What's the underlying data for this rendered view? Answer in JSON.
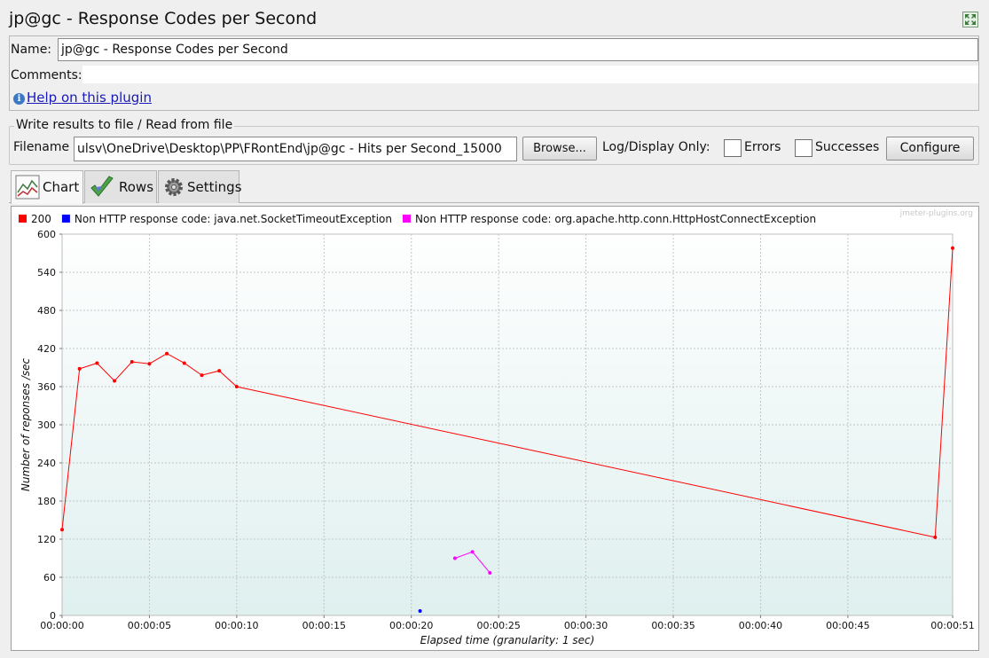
{
  "window": {
    "title": "jp@gc - Response Codes per Second"
  },
  "name_panel": {
    "name_label": "Name:",
    "name_value": "jp@gc - Response Codes per Second",
    "comments_label": "Comments:",
    "comments_value": "",
    "help_link": "Help on this plugin"
  },
  "file_panel": {
    "group_title": "Write results to file / Read from file",
    "filename_label": "Filename",
    "filename_value": "ulsv\\OneDrive\\Desktop\\PP\\FRontEnd\\jp@gc - Hits per Second_15000",
    "browse_label": "Browse...",
    "log_display_label": "Log/Display Only:",
    "errors_label": "Errors",
    "errors_checked": false,
    "successes_label": "Successes",
    "successes_checked": false,
    "configure_label": "Configure"
  },
  "tabs": [
    {
      "label": "Chart",
      "icon": "chart-icon",
      "active": true
    },
    {
      "label": "Rows",
      "icon": "checkmark-icon",
      "active": false
    },
    {
      "label": "Settings",
      "icon": "gear-icon",
      "active": false
    }
  ],
  "chart_data": {
    "type": "line",
    "watermark": "jmeter-plugins.org",
    "xlabel": "Elapsed time (granularity: 1 sec)",
    "ylabel": "Number of reponses /sec",
    "xlim": [
      0,
      51
    ],
    "ylim": [
      0,
      600
    ],
    "x_ticks": [
      {
        "value": 0,
        "label": "00:00:00"
      },
      {
        "value": 5,
        "label": "00:00:05"
      },
      {
        "value": 10,
        "label": "00:00:10"
      },
      {
        "value": 15,
        "label": "00:00:15"
      },
      {
        "value": 20,
        "label": "00:00:20"
      },
      {
        "value": 25,
        "label": "00:00:25"
      },
      {
        "value": 30,
        "label": "00:00:30"
      },
      {
        "value": 35,
        "label": "00:00:35"
      },
      {
        "value": 40,
        "label": "00:00:40"
      },
      {
        "value": 45,
        "label": "00:00:45"
      },
      {
        "value": 51,
        "label": "00:00:51"
      }
    ],
    "y_ticks": [
      0,
      60,
      120,
      180,
      240,
      300,
      360,
      420,
      480,
      540,
      600
    ],
    "series": [
      {
        "name": "200",
        "color": "#ff0000",
        "points": [
          [
            0,
            135
          ],
          [
            1,
            388
          ],
          [
            2,
            397
          ],
          [
            3,
            369
          ],
          [
            4,
            399
          ],
          [
            5,
            396
          ],
          [
            6,
            412
          ],
          [
            7,
            397
          ],
          [
            8,
            378
          ],
          [
            9,
            385
          ],
          [
            10,
            360
          ],
          [
            50,
            123
          ],
          [
            51,
            578
          ]
        ]
      },
      {
        "name": "Non HTTP response code: java.net.SocketTimeoutException",
        "color": "#0000ff",
        "points": [
          [
            20.5,
            7
          ]
        ]
      },
      {
        "name": "Non HTTP response code: org.apache.http.conn.HttpHostConnectException",
        "color": "#ff00ff",
        "points": [
          [
            22.5,
            90
          ],
          [
            23.5,
            100
          ],
          [
            24.5,
            67
          ]
        ]
      }
    ]
  }
}
